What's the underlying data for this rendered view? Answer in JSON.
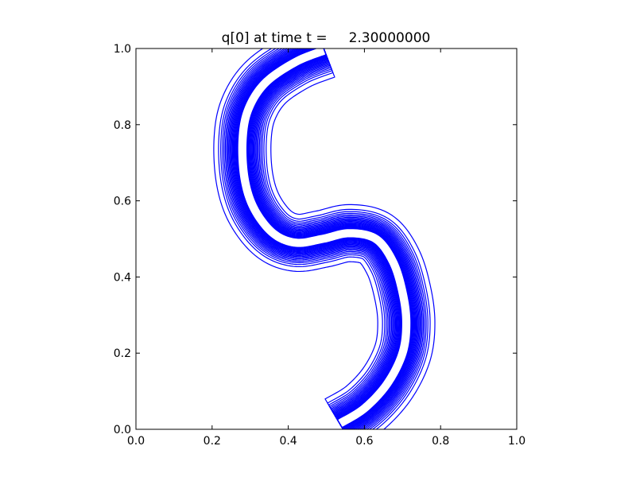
{
  "chart_data": {
    "type": "contour",
    "title": "q[0] at time t =     2.30000000",
    "xlabel": "",
    "ylabel": "",
    "xlim": [
      0.0,
      1.0
    ],
    "ylim": [
      0.0,
      1.0
    ],
    "x_ticks": [
      "0.0",
      "0.2",
      "0.4",
      "0.6",
      "0.8",
      "1.0"
    ],
    "y_ticks": [
      "0.0",
      "0.2",
      "0.4",
      "0.6",
      "0.8",
      "1.0"
    ],
    "grid": false,
    "legend": "none",
    "line_color": "#0000ff",
    "contour_levels": 20,
    "centerline": [
      [
        0.495,
        0.995
      ],
      [
        0.42,
        0.965
      ],
      [
        0.34,
        0.91
      ],
      [
        0.295,
        0.84
      ],
      [
        0.28,
        0.76
      ],
      [
        0.285,
        0.66
      ],
      [
        0.31,
        0.58
      ],
      [
        0.36,
        0.515
      ],
      [
        0.42,
        0.49
      ],
      [
        0.49,
        0.5
      ],
      [
        0.56,
        0.515
      ],
      [
        0.63,
        0.5
      ],
      [
        0.675,
        0.44
      ],
      [
        0.7,
        0.36
      ],
      [
        0.71,
        0.28
      ],
      [
        0.7,
        0.2
      ],
      [
        0.66,
        0.12
      ],
      [
        0.6,
        0.055
      ],
      [
        0.535,
        0.015
      ]
    ],
    "outer_halfwidth": 0.075,
    "inner_halfwidth": 0.012
  }
}
